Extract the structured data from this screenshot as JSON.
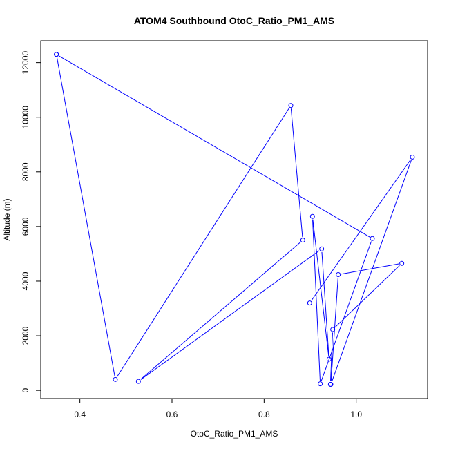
{
  "chart_data": {
    "type": "line",
    "title": "ATOM4 Southbound OtoC_Ratio_PM1_AMS",
    "xlabel": "OtoC_Ratio_PM1_AMS",
    "ylabel": "Altitude (m)",
    "xlim": [
      0.315,
      1.155
    ],
    "ylim": [
      -300,
      12800
    ],
    "x_ticks": [
      0.4,
      0.6,
      0.8,
      1.0
    ],
    "x_tick_labels": [
      "0.4",
      "0.6",
      "0.8",
      "1.0"
    ],
    "y_ticks": [
      0,
      2000,
      4000,
      6000,
      8000,
      10000,
      12000
    ],
    "y_tick_labels": [
      "0",
      "2000",
      "4000",
      "6000",
      "8000",
      "10000",
      "12000"
    ],
    "grid": false,
    "series_color": "#0000ff",
    "series": [
      {
        "marker": "open-circle",
        "x": [
          0.349,
          0.477,
          0.858,
          0.884,
          0.527,
          0.925,
          0.941,
          0.905,
          0.922,
          1.035,
          0.349
        ],
        "y": [
          12300,
          400,
          10430,
          5500,
          330,
          5180,
          1140,
          6370,
          240,
          5560,
          12300
        ]
      },
      {
        "marker": "open-circle",
        "x": [
          0.899,
          1.122,
          0.945,
          0.961,
          1.099,
          0.949,
          0.944
        ],
        "y": [
          3200,
          8540,
          220,
          4240,
          4650,
          2230,
          220
        ]
      }
    ]
  }
}
